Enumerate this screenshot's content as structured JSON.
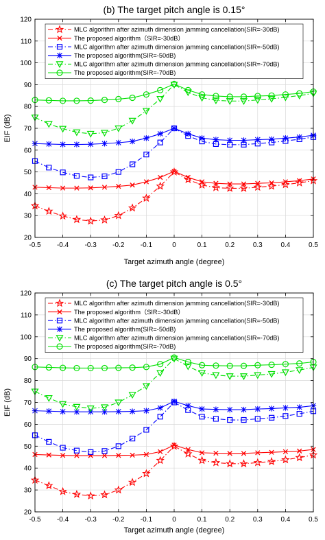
{
  "chart_data": [
    {
      "type": "line",
      "title": "(b) The target pitch angle is 0.15°",
      "xlabel": "Target azimuth angle (degree)",
      "ylabel": "EIF (dB)",
      "xlim": [
        -0.5,
        0.5
      ],
      "ylim": [
        20,
        120
      ],
      "xticks": [
        -0.5,
        -0.4,
        -0.3,
        -0.2,
        -0.1,
        0,
        0.1,
        0.2,
        0.3,
        0.4,
        0.5
      ],
      "xtick_labels": [
        "-0.5",
        "-0.4",
        "-0.3",
        "-0.2",
        "-0.1",
        "0",
        "0.1",
        "0.2",
        "0.3",
        "0.4",
        "0.5"
      ],
      "yticks": [
        20,
        30,
        40,
        50,
        60,
        70,
        80,
        90,
        100,
        110,
        120
      ],
      "ytick_labels": [
        "20",
        "30",
        "40",
        "50",
        "60",
        "70",
        "80",
        "90",
        "100",
        "110",
        "120"
      ],
      "grid": true,
      "legend_position": "top",
      "x": [
        -0.5,
        -0.45,
        -0.4,
        -0.35,
        -0.3,
        -0.25,
        -0.2,
        -0.15,
        -0.1,
        -0.05,
        0,
        0.05,
        0.1,
        0.15,
        0.2,
        0.25,
        0.3,
        0.35,
        0.4,
        0.45,
        0.5
      ],
      "series": [
        {
          "name": "MLC algorithm after azimuth dimension jamming cancellation(SIR=-30dB)",
          "color": "#ff0000",
          "linestyle": "dashdot",
          "marker": "star",
          "values": [
            34.5,
            32.0,
            29.8,
            28.2,
            27.5,
            28.0,
            30.0,
            33.5,
            38.0,
            43.5,
            50.0,
            46.5,
            44.0,
            42.8,
            42.5,
            42.5,
            43.0,
            43.5,
            44.2,
            45.0,
            46.0
          ]
        },
        {
          "name": "The proposed algorithm（SIR=-30dB）",
          "color": "#ff0000",
          "linestyle": "solid",
          "marker": "x",
          "values": [
            43.0,
            42.8,
            42.6,
            42.6,
            42.7,
            43.0,
            43.4,
            44.0,
            45.5,
            47.5,
            50.3,
            47.5,
            45.5,
            44.8,
            44.5,
            44.5,
            44.8,
            45.0,
            45.5,
            46.0,
            46.8
          ]
        },
        {
          "name": "MLC algorithm after azimuth dimension jamming cancellation(SIR=-50dB)",
          "color": "#0000ff",
          "linestyle": "dashdot",
          "marker": "square",
          "values": [
            55.0,
            52.0,
            49.8,
            48.2,
            47.5,
            48.0,
            50.0,
            53.5,
            58.0,
            63.5,
            70.0,
            66.5,
            64.0,
            62.8,
            62.5,
            62.5,
            63.0,
            63.5,
            64.2,
            65.0,
            66.0
          ]
        },
        {
          "name": "The proposed algorithm(SIR=-50dB)",
          "color": "#0000ff",
          "linestyle": "solid",
          "marker": "asterisk",
          "values": [
            63.0,
            62.8,
            62.6,
            62.6,
            62.7,
            63.0,
            63.4,
            64.0,
            65.5,
            67.5,
            70.0,
            67.5,
            65.5,
            64.8,
            64.5,
            64.5,
            64.8,
            65.0,
            65.5,
            66.0,
            66.8
          ]
        },
        {
          "name": "MLC algorithm after azimuth dimension jamming cancellation(SIR=-70dB)",
          "color": "#00e000",
          "linestyle": "dashdot",
          "marker": "triangle-down",
          "values": [
            75.0,
            72.0,
            69.8,
            68.2,
            67.5,
            68.0,
            70.0,
            73.5,
            78.0,
            83.5,
            90.0,
            86.5,
            84.0,
            82.8,
            82.5,
            82.5,
            83.0,
            83.5,
            84.2,
            85.0,
            86.0
          ]
        },
        {
          "name": "The proposed algorithm(SIR=-70dB)",
          "color": "#00e000",
          "linestyle": "solid",
          "marker": "circle",
          "values": [
            83.0,
            82.8,
            82.6,
            82.6,
            82.7,
            83.0,
            83.4,
            84.0,
            85.5,
            87.5,
            90.3,
            87.5,
            85.5,
            84.8,
            84.5,
            84.5,
            84.8,
            85.0,
            85.5,
            86.0,
            86.8
          ]
        }
      ]
    },
    {
      "type": "line",
      "title": "(c) The target pitch angle is 0.5°",
      "xlabel": "Target azimuth angle (degree)",
      "ylabel": "EIF (dB)",
      "xlim": [
        -0.5,
        0.5
      ],
      "ylim": [
        20,
        120
      ],
      "xticks": [
        -0.5,
        -0.4,
        -0.3,
        -0.2,
        -0.1,
        0,
        0.1,
        0.2,
        0.3,
        0.4,
        0.5
      ],
      "xtick_labels": [
        "-0.5",
        "-0.4",
        "-0.3",
        "-0.2",
        "-0.1",
        "0",
        "0.1",
        "0.2",
        "0.3",
        "0.4",
        "0.5"
      ],
      "yticks": [
        20,
        30,
        40,
        50,
        60,
        70,
        80,
        90,
        100,
        110,
        120
      ],
      "ytick_labels": [
        "20",
        "30",
        "40",
        "50",
        "60",
        "70",
        "80",
        "90",
        "100",
        "110",
        "120"
      ],
      "grid": true,
      "legend_position": "top",
      "x": [
        -0.5,
        -0.45,
        -0.4,
        -0.35,
        -0.3,
        -0.25,
        -0.2,
        -0.15,
        -0.1,
        -0.05,
        0,
        0.05,
        0.1,
        0.15,
        0.2,
        0.25,
        0.3,
        0.35,
        0.4,
        0.45,
        0.5
      ],
      "series": [
        {
          "name": "MLC algorithm after azimuth dimension jamming cancellation(SIR=-30dB)",
          "color": "#ff0000",
          "linestyle": "dashdot",
          "marker": "star",
          "values": [
            34.5,
            32.0,
            29.3,
            28.0,
            27.3,
            27.8,
            30.0,
            33.5,
            37.5,
            43.5,
            50.0,
            46.5,
            43.5,
            42.5,
            42.0,
            42.0,
            42.5,
            43.0,
            43.8,
            44.8,
            46.0
          ]
        },
        {
          "name": "The proposed algorithm（SIR=-30dB）",
          "color": "#ff0000",
          "linestyle": "solid",
          "marker": "x",
          "values": [
            46.2,
            46.0,
            45.8,
            45.7,
            45.7,
            45.7,
            45.8,
            45.9,
            46.2,
            47.5,
            50.5,
            48.5,
            47.0,
            46.8,
            46.7,
            46.7,
            47.0,
            47.2,
            47.5,
            47.8,
            48.5
          ]
        },
        {
          "name": "MLC algorithm after azimuth dimension jamming cancellation(SIR=-50dB)",
          "color": "#0000ff",
          "linestyle": "dashdot",
          "marker": "square",
          "values": [
            55.0,
            52.0,
            49.3,
            48.0,
            47.3,
            47.8,
            50.0,
            53.5,
            57.5,
            63.5,
            70.0,
            66.5,
            63.5,
            62.5,
            62.0,
            62.0,
            62.5,
            63.0,
            63.8,
            64.8,
            66.0
          ]
        },
        {
          "name": "The proposed algorithm(SIR=-50dB)",
          "color": "#0000ff",
          "linestyle": "solid",
          "marker": "asterisk",
          "values": [
            66.2,
            66.0,
            65.8,
            65.7,
            65.7,
            65.7,
            65.8,
            65.9,
            66.2,
            67.5,
            70.5,
            68.5,
            67.0,
            66.8,
            66.7,
            66.7,
            67.0,
            67.2,
            67.5,
            67.8,
            68.5
          ]
        },
        {
          "name": "MLC algorithm after azimuth dimension jamming cancellation(SIR=-70dB)",
          "color": "#00e000",
          "linestyle": "dashdot",
          "marker": "triangle-down",
          "values": [
            75.0,
            72.0,
            69.3,
            68.0,
            67.3,
            67.8,
            70.0,
            73.5,
            77.5,
            83.5,
            90.0,
            86.5,
            83.5,
            82.5,
            82.0,
            82.0,
            82.5,
            83.0,
            83.8,
            84.8,
            86.0
          ]
        },
        {
          "name": "The proposed algorithm(SIR=-70dB)",
          "color": "#00e000",
          "linestyle": "solid",
          "marker": "circle",
          "values": [
            86.2,
            86.0,
            85.8,
            85.7,
            85.7,
            85.7,
            85.8,
            85.9,
            86.2,
            87.5,
            90.5,
            88.5,
            87.0,
            86.8,
            86.7,
            86.7,
            87.0,
            87.2,
            87.5,
            87.8,
            88.5
          ]
        }
      ]
    }
  ]
}
